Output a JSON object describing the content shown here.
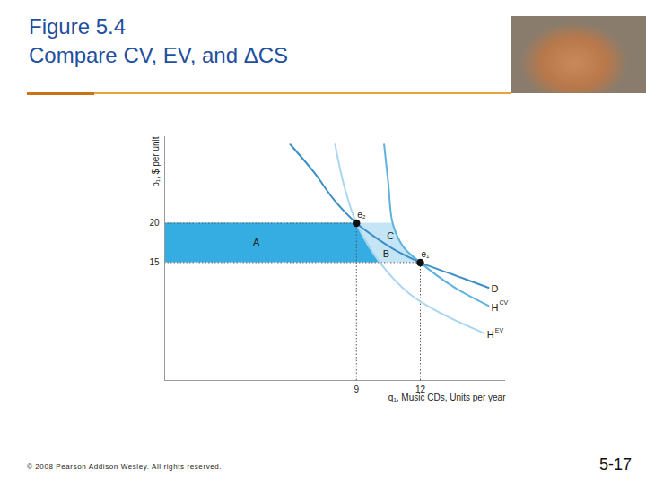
{
  "slide": {
    "footer": "© 2008 Pearson Addison Wesley. All rights reserved.",
    "page": "5-17"
  },
  "chart_data": {
    "type": "line",
    "title": "Figure 5.4",
    "subtitle": "Compare CV, EV, and ΔCS",
    "x_label": "q₁, Music CDs, Units per year",
    "y_label": "p₁, $ per unit",
    "xlim": [
      0,
      16
    ],
    "ylim": [
      0,
      31
    ],
    "xticks": [
      9,
      12
    ],
    "yticks": [
      15,
      20
    ],
    "grid": false,
    "series": [
      {
        "name": "D",
        "color": "#3b8ec6",
        "x": [
          5.9,
          7,
          8,
          9,
          10,
          11,
          12,
          13.5,
          15.2
        ],
        "values": [
          30,
          26.5,
          22.8,
          20,
          18,
          16.3,
          15,
          13.5,
          11.8
        ]
      },
      {
        "name": "H",
        "superscript": "CV",
        "color": "#5db2de",
        "x": [
          10.3,
          10.5,
          10.7,
          11.2,
          12,
          13.5,
          15.2
        ],
        "values": [
          30,
          25,
          20,
          17,
          15,
          12,
          9.5
        ]
      },
      {
        "name": "H",
        "superscript": "EV",
        "color": "#a9d7ef",
        "x": [
          8,
          8.4,
          9,
          10.1,
          11.5,
          13,
          15
        ],
        "values": [
          30,
          25,
          20,
          15,
          11,
          8.5,
          6
        ]
      }
    ],
    "points": [
      {
        "label": "e₂",
        "x": 9,
        "y": 20
      },
      {
        "label": "e₁",
        "x": 12,
        "y": 15
      }
    ],
    "regions": [
      {
        "label": "A",
        "left": null,
        "right": "EV",
        "color": "#36ade2",
        "label_x": 4.3,
        "label_y": 17.5
      },
      {
        "label": "B",
        "left": "EV",
        "right": "D",
        "color": "#c4e5f5",
        "label_x": 10.4,
        "label_y": 16.1
      },
      {
        "label": "C",
        "left": "D",
        "right": "CV",
        "color": "#c4e5f5",
        "label_x": 10.6,
        "label_y": 18.4
      }
    ]
  }
}
